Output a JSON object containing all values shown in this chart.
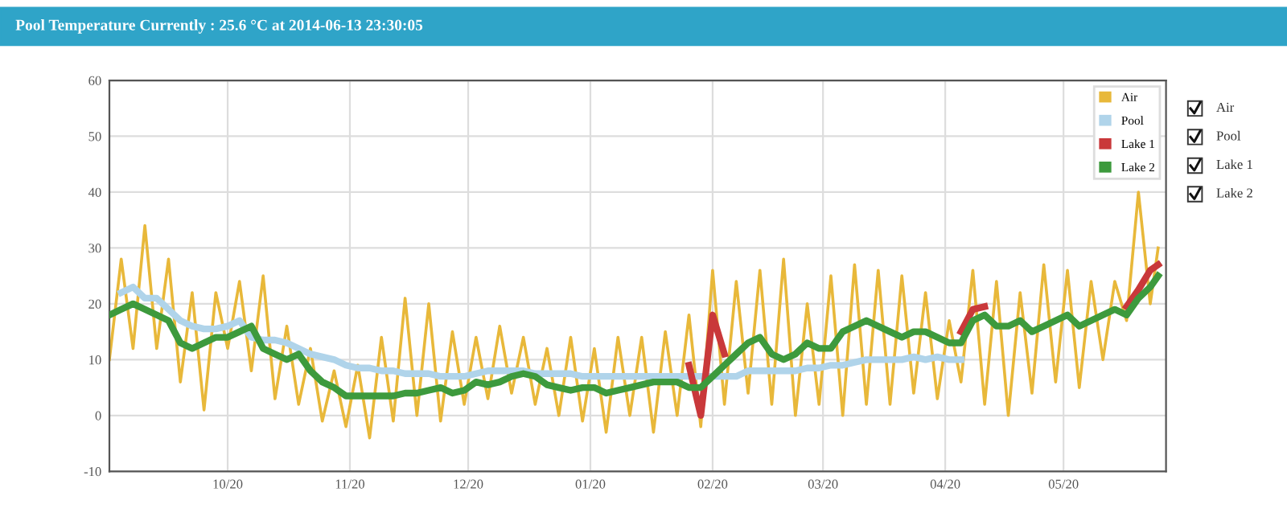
{
  "chart_data": {
    "type": "line",
    "title": "Pool Temperature Currently : 25.6 °C at 2014-06-13 23:30:05",
    "x": [
      "2013-09-20",
      "2013-09-23",
      "2013-09-26",
      "2013-09-29",
      "2013-10-02",
      "2013-10-05",
      "2013-10-08",
      "2013-10-11",
      "2013-10-14",
      "2013-10-17",
      "2013-10-20",
      "2013-10-23",
      "2013-10-26",
      "2013-10-29",
      "2013-11-01",
      "2013-11-04",
      "2013-11-07",
      "2013-11-10",
      "2013-11-13",
      "2013-11-16",
      "2013-11-19",
      "2013-11-22",
      "2013-11-25",
      "2013-11-28",
      "2013-12-01",
      "2013-12-04",
      "2013-12-07",
      "2013-12-10",
      "2013-12-13",
      "2013-12-16",
      "2013-12-19",
      "2013-12-22",
      "2013-12-25",
      "2013-12-28",
      "2013-12-31",
      "2014-01-03",
      "2014-01-06",
      "2014-01-09",
      "2014-01-12",
      "2014-01-15",
      "2014-01-18",
      "2014-01-21",
      "2014-01-24",
      "2014-01-27",
      "2014-01-30",
      "2014-02-02",
      "2014-02-05",
      "2014-02-08",
      "2014-02-11",
      "2014-02-14",
      "2014-02-17",
      "2014-02-20",
      "2014-02-23",
      "2014-02-26",
      "2014-03-01",
      "2014-03-04",
      "2014-03-07",
      "2014-03-10",
      "2014-03-13",
      "2014-03-16",
      "2014-03-19",
      "2014-03-22",
      "2014-03-25",
      "2014-03-28",
      "2014-03-31",
      "2014-04-03",
      "2014-04-06",
      "2014-04-09",
      "2014-04-12",
      "2014-04-15",
      "2014-04-18",
      "2014-04-21",
      "2014-04-24",
      "2014-04-27",
      "2014-04-30",
      "2014-05-03",
      "2014-05-06",
      "2014-05-09",
      "2014-05-12",
      "2014-05-15",
      "2014-05-18",
      "2014-05-21",
      "2014-05-24",
      "2014-05-27",
      "2014-05-30",
      "2014-06-02",
      "2014-06-05",
      "2014-06-08",
      "2014-06-11",
      "2014-06-13"
    ],
    "series": [
      {
        "name": "Air",
        "color": "#e8b83a",
        "values": [
          10,
          28,
          12,
          34,
          12,
          28,
          6,
          22,
          1,
          22,
          12,
          24,
          8,
          25,
          3,
          16,
          2,
          12,
          -1,
          8,
          -2,
          9,
          -4,
          14,
          -1,
          21,
          0,
          20,
          -1,
          15,
          2,
          14,
          3,
          16,
          4,
          14,
          2,
          12,
          0,
          14,
          -1,
          12,
          -3,
          14,
          0,
          14,
          -3,
          15,
          0,
          18,
          -2,
          26,
          2,
          24,
          4,
          26,
          2,
          28,
          0,
          20,
          2,
          25,
          0,
          27,
          2,
          26,
          2,
          25,
          4,
          22,
          3,
          17,
          6,
          26,
          2,
          24,
          0,
          22,
          4,
          27,
          6,
          26,
          5,
          24,
          10,
          24,
          17,
          40,
          20,
          30
        ]
      },
      {
        "name": "Pool",
        "color": "#b0d4ea",
        "values": [
          null,
          22,
          23,
          21,
          21,
          19,
          17,
          16,
          15.5,
          15.5,
          16,
          17,
          14,
          13.5,
          13.5,
          13,
          12,
          11,
          10.5,
          10,
          9,
          8.5,
          8.5,
          8,
          8,
          7.5,
          7.5,
          7.5,
          7,
          7,
          7,
          7.5,
          8,
          8,
          8,
          8,
          7.5,
          7.5,
          7.5,
          7.5,
          7,
          7,
          7,
          7,
          7,
          7,
          7,
          7,
          7,
          7,
          7,
          7,
          7,
          7,
          8,
          8,
          8,
          8,
          8,
          8.5,
          8.5,
          9,
          9,
          9.5,
          10,
          10,
          10,
          10,
          10.5,
          10,
          10.5,
          10,
          10,
          null,
          null,
          null,
          null,
          null,
          null,
          null,
          null,
          null,
          null,
          null,
          null,
          null,
          null,
          null,
          null,
          null
        ]
      },
      {
        "name": "Lake 1",
        "color": "#c9383a",
        "values": [
          null,
          null,
          null,
          null,
          null,
          null,
          null,
          null,
          null,
          null,
          null,
          null,
          null,
          null,
          null,
          null,
          null,
          null,
          null,
          null,
          null,
          null,
          null,
          null,
          null,
          null,
          null,
          null,
          null,
          null,
          null,
          null,
          null,
          null,
          null,
          null,
          null,
          null,
          null,
          null,
          null,
          null,
          null,
          null,
          null,
          null,
          null,
          null,
          null,
          9,
          0,
          18,
          11,
          null,
          null,
          null,
          null,
          null,
          null,
          null,
          null,
          null,
          null,
          null,
          null,
          null,
          null,
          null,
          null,
          null,
          null,
          null,
          15,
          19,
          19.5,
          null,
          null,
          null,
          null,
          null,
          null,
          null,
          null,
          null,
          null,
          null,
          19.5,
          22.5,
          26,
          27
        ]
      },
      {
        "name": "Lake 2",
        "color": "#3d9a3d",
        "values": [
          18,
          19,
          20,
          19,
          18,
          17,
          13,
          12,
          13,
          14,
          14,
          15,
          16,
          12,
          11,
          10,
          11,
          8,
          6,
          5,
          3.5,
          3.5,
          3.5,
          3.5,
          3.5,
          4,
          4,
          4.5,
          5,
          4,
          4.5,
          6,
          5.5,
          6,
          7,
          7.5,
          7,
          5.5,
          5,
          4.5,
          5,
          5,
          4,
          4.5,
          5,
          5.5,
          6,
          6,
          6,
          5,
          5,
          7,
          9,
          11,
          13,
          14,
          11,
          10,
          11,
          13,
          12,
          12,
          15,
          16,
          17,
          16,
          15,
          14,
          15,
          15,
          14,
          13,
          13,
          17,
          18,
          16,
          16,
          17,
          15,
          16,
          17,
          18,
          16,
          17,
          18,
          19,
          18,
          21,
          23,
          25
        ]
      }
    ],
    "xlim": [
      "2013-09-20",
      "2014-06-15"
    ],
    "xticks": [
      {
        "value": "2013-10-20",
        "label": "10/20"
      },
      {
        "value": "2013-11-20",
        "label": "11/20"
      },
      {
        "value": "2013-12-20",
        "label": "12/20"
      },
      {
        "value": "2014-01-20",
        "label": "01/20"
      },
      {
        "value": "2014-02-20",
        "label": "02/20"
      },
      {
        "value": "2014-03-20",
        "label": "03/20"
      },
      {
        "value": "2014-04-20",
        "label": "04/20"
      },
      {
        "value": "2014-05-20",
        "label": "05/20"
      }
    ],
    "ylim": [
      -10,
      60
    ],
    "yticks": [
      -10,
      0,
      10,
      20,
      30,
      40,
      50,
      60
    ],
    "grid": true,
    "legend": "top right",
    "line_style": "solid",
    "marker": "none",
    "annotations": [
      "Air",
      "Pool",
      "Lake 1",
      "Lake 2"
    ]
  }
}
